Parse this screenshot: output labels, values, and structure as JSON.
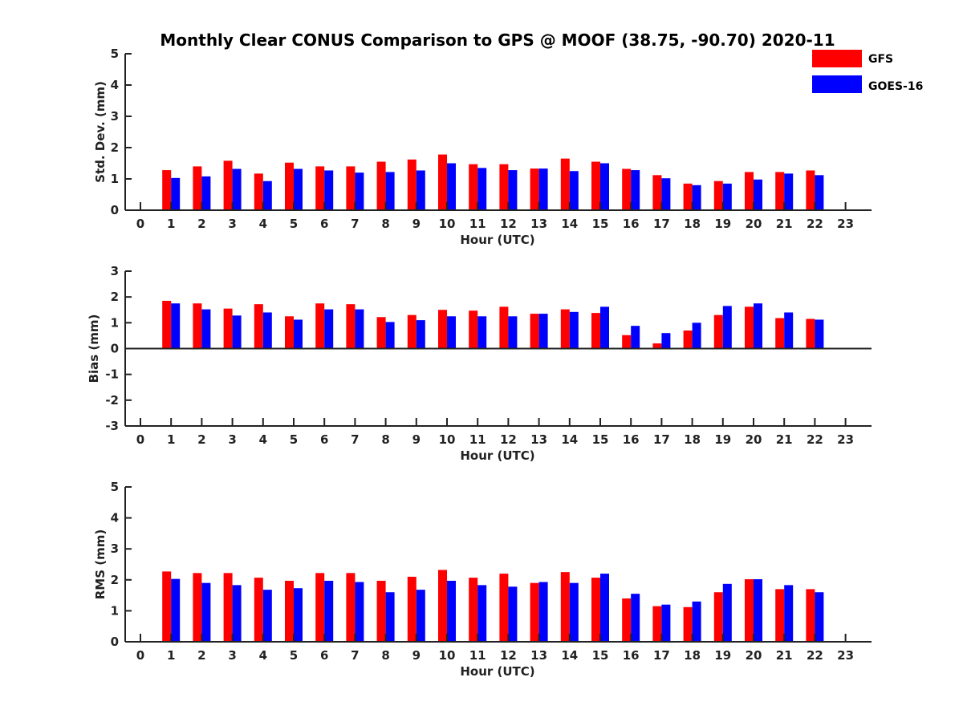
{
  "figure_title": "Monthly Clear CONUS Comparison to GPS @ MOOF (38.75, -90.70) 2020-11",
  "legend": [
    {
      "label": "GFS",
      "color": "#ff0000"
    },
    {
      "label": "GOES-16",
      "color": "#0000ff"
    }
  ],
  "chart_data": [
    {
      "type": "bar",
      "ylabel": "Std. Dev. (mm)",
      "xlabel": "Hour (UTC)",
      "ylim": [
        0,
        5
      ],
      "yticks": [
        0,
        1,
        2,
        3,
        4,
        5
      ],
      "xticks": [
        0,
        1,
        2,
        3,
        4,
        5,
        6,
        7,
        8,
        9,
        10,
        11,
        12,
        13,
        14,
        15,
        16,
        17,
        18,
        19,
        20,
        21,
        22,
        23
      ],
      "x": [
        1,
        2,
        3,
        4,
        5,
        6,
        7,
        8,
        9,
        10,
        11,
        12,
        13,
        14,
        15,
        16,
        17,
        18,
        19,
        20,
        21,
        22
      ],
      "series": [
        {
          "name": "GFS",
          "color": "#ff0000",
          "values": [
            1.28,
            1.4,
            1.58,
            1.17,
            1.52,
            1.4,
            1.4,
            1.55,
            1.62,
            1.78,
            1.47,
            1.47,
            1.33,
            1.65,
            1.55,
            1.32,
            1.12,
            0.85,
            0.93,
            1.22,
            1.22,
            1.27
          ]
        },
        {
          "name": "GOES-16",
          "color": "#0000ff",
          "values": [
            1.03,
            1.08,
            1.32,
            0.93,
            1.32,
            1.27,
            1.2,
            1.22,
            1.27,
            1.5,
            1.35,
            1.28,
            1.33,
            1.25,
            1.5,
            1.28,
            1.02,
            0.8,
            0.85,
            0.98,
            1.17,
            1.12
          ]
        }
      ]
    },
    {
      "type": "bar",
      "ylabel": "Bias (mm)",
      "xlabel": "Hour (UTC)",
      "ylim": [
        -3,
        3
      ],
      "yticks": [
        -3,
        -2,
        -1,
        0,
        1,
        2,
        3
      ],
      "xticks": [
        0,
        1,
        2,
        3,
        4,
        5,
        6,
        7,
        8,
        9,
        10,
        11,
        12,
        13,
        14,
        15,
        16,
        17,
        18,
        19,
        20,
        21,
        22,
        23
      ],
      "x": [
        1,
        2,
        3,
        4,
        5,
        6,
        7,
        8,
        9,
        10,
        11,
        12,
        13,
        14,
        15,
        16,
        17,
        18,
        19,
        20,
        21,
        22
      ],
      "series": [
        {
          "name": "GFS",
          "color": "#ff0000",
          "values": [
            1.85,
            1.75,
            1.55,
            1.72,
            1.25,
            1.75,
            1.72,
            1.22,
            1.3,
            1.5,
            1.47,
            1.62,
            1.35,
            1.52,
            1.38,
            0.52,
            0.2,
            0.7,
            1.3,
            1.62,
            1.18,
            1.15
          ]
        },
        {
          "name": "GOES-16",
          "color": "#0000ff",
          "values": [
            1.75,
            1.52,
            1.28,
            1.4,
            1.12,
            1.52,
            1.52,
            1.03,
            1.1,
            1.25,
            1.25,
            1.25,
            1.35,
            1.42,
            1.62,
            0.88,
            0.6,
            1.0,
            1.65,
            1.75,
            1.4,
            1.12
          ]
        }
      ]
    },
    {
      "type": "bar",
      "ylabel": "RMS (mm)",
      "xlabel": "Hour (UTC)",
      "ylim": [
        0,
        5
      ],
      "yticks": [
        0,
        1,
        2,
        3,
        4,
        5
      ],
      "xticks": [
        0,
        1,
        2,
        3,
        4,
        5,
        6,
        7,
        8,
        9,
        10,
        11,
        12,
        13,
        14,
        15,
        16,
        17,
        18,
        19,
        20,
        21,
        22,
        23
      ],
      "x": [
        1,
        2,
        3,
        4,
        5,
        6,
        7,
        8,
        9,
        10,
        11,
        12,
        13,
        14,
        15,
        16,
        17,
        18,
        19,
        20,
        21,
        22
      ],
      "series": [
        {
          "name": "GFS",
          "color": "#ff0000",
          "values": [
            2.27,
            2.22,
            2.22,
            2.07,
            1.97,
            2.22,
            2.22,
            1.97,
            2.1,
            2.32,
            2.07,
            2.2,
            1.9,
            2.25,
            2.07,
            1.4,
            1.15,
            1.12,
            1.6,
            2.02,
            1.7,
            1.7
          ]
        },
        {
          "name": "GOES-16",
          "color": "#0000ff",
          "values": [
            2.03,
            1.9,
            1.83,
            1.68,
            1.73,
            1.97,
            1.93,
            1.6,
            1.68,
            1.97,
            1.83,
            1.78,
            1.93,
            1.9,
            2.2,
            1.55,
            1.2,
            1.3,
            1.87,
            2.02,
            1.83,
            1.6
          ]
        }
      ]
    }
  ]
}
